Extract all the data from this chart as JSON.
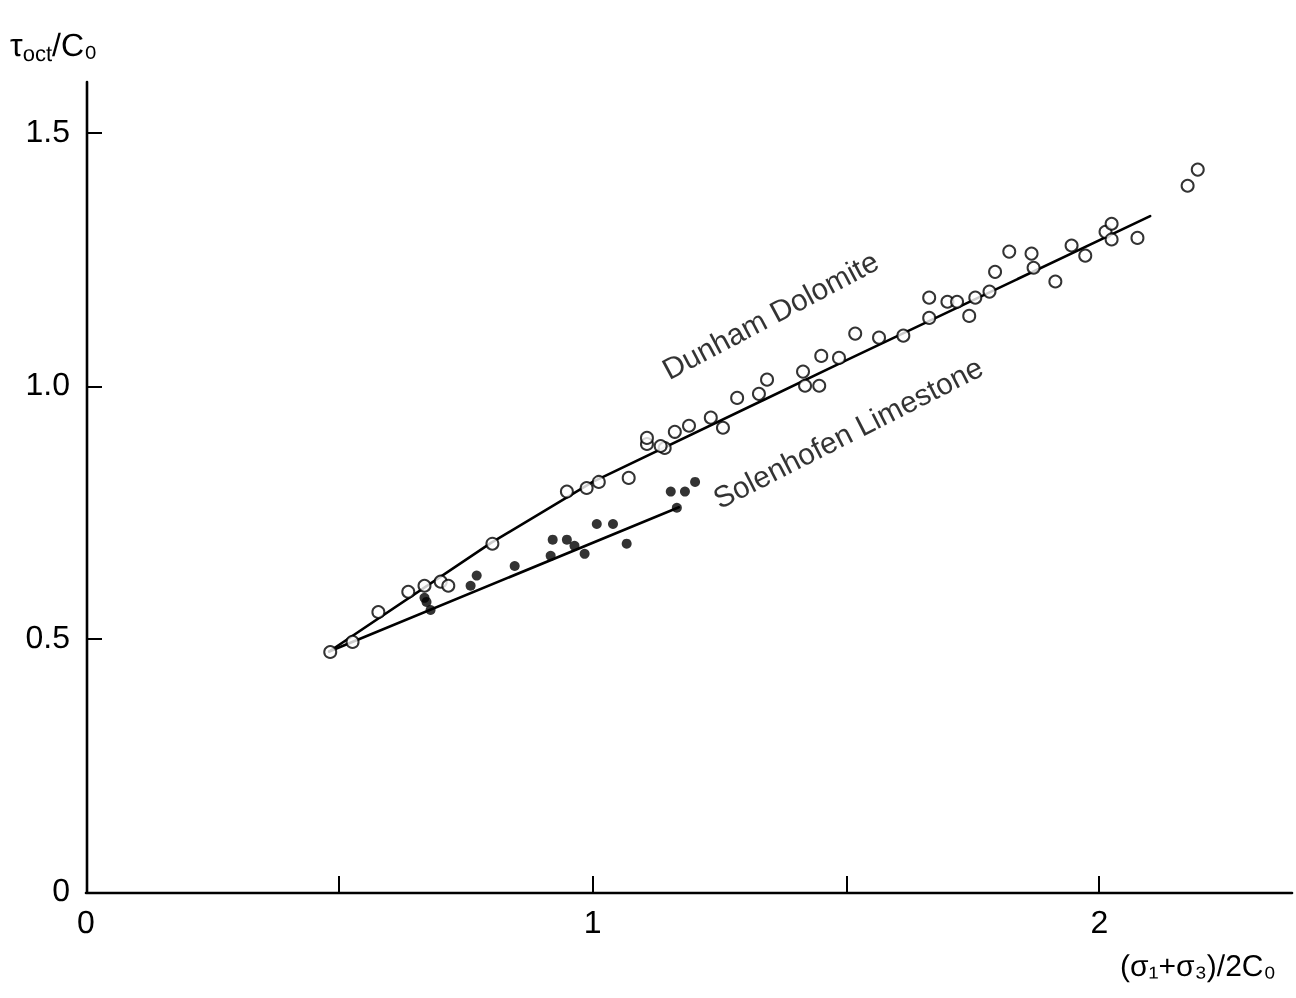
{
  "chart_data": {
    "type": "scatter",
    "xlabel": "(σ₁+σ₃)/2C₀",
    "ylabel": "τ$_{oct}$/C₀",
    "xlim": [
      0,
      2.38
    ],
    "ylim": [
      0,
      1.6
    ],
    "xticks": [
      0,
      {
        "value": 0.5,
        "label": null
      },
      1,
      {
        "value": 1.5,
        "label": null
      },
      2
    ],
    "yticks": [
      0,
      0.5,
      {
        "value": 1,
        "label": "1.0"
      },
      1.5
    ],
    "grid": false,
    "legend": false,
    "series": [
      {
        "name": "Dunham Dolomite",
        "marker": "circle",
        "color": "#000000",
        "x": [
          0.482,
          0.526,
          0.577,
          0.636,
          0.668,
          0.7,
          0.715,
          0.802,
          0.949,
          0.988,
          1.012,
          1.071,
          1.107,
          1.142,
          1.107,
          1.134,
          1.162,
          1.19,
          1.233,
          1.257,
          1.285,
          1.328,
          1.344,
          1.415,
          1.419,
          1.447,
          1.451,
          1.486,
          1.518,
          1.565,
          1.613,
          1.664,
          1.664,
          1.7,
          1.719,
          1.743,
          1.755,
          1.783,
          1.794,
          1.822,
          1.866,
          1.87,
          1.913,
          1.945,
          1.972,
          2.012,
          2.024,
          2.024,
          2.075,
          2.174,
          2.194
        ],
        "values": [
          0.474,
          0.494,
          0.553,
          0.593,
          0.605,
          0.613,
          0.605,
          0.688,
          0.791,
          0.798,
          0.81,
          0.818,
          0.885,
          0.877,
          0.897,
          0.881,
          0.909,
          0.921,
          0.937,
          0.917,
          0.976,
          0.984,
          1.012,
          1.028,
          1.0,
          1.0,
          1.059,
          1.055,
          1.103,
          1.095,
          1.099,
          1.134,
          1.174,
          1.166,
          1.166,
          1.138,
          1.174,
          1.186,
          1.225,
          1.265,
          1.261,
          1.233,
          1.206,
          1.277,
          1.257,
          1.304,
          1.32,
          1.289,
          1.292,
          1.395,
          1.427
        ]
      },
      {
        "name": "Solenhofen Limestone",
        "marker": "circle",
        "color": "#000000",
        "x": [
          0.668,
          0.672,
          0.68,
          0.759,
          0.771,
          0.846,
          0.917,
          0.921,
          0.949,
          0.964,
          0.984,
          1.008,
          1.04,
          1.067,
          1.154,
          1.166,
          1.182,
          1.202
        ],
        "values": [
          0.581,
          0.573,
          0.557,
          0.605,
          0.625,
          0.644,
          0.664,
          0.696,
          0.696,
          0.684,
          0.668,
          0.727,
          0.727,
          0.688,
          0.791,
          0.759,
          0.791,
          0.81
        ]
      },
      {
        "type": "line",
        "color": "#000000",
        "marker": "none",
        "line_style": "solid",
        "x": [
          0.48,
          0.8,
          1.0,
          1.5,
          2.1
        ],
        "values": [
          0.475,
          0.69,
          0.81,
          1.05,
          1.335
        ]
      },
      {
        "type": "line",
        "color": "#000000",
        "marker": "none",
        "line_style": "solid",
        "x": [
          0.48,
          1.17
        ],
        "values": [
          0.475,
          0.76
        ]
      }
    ]
  }
}
